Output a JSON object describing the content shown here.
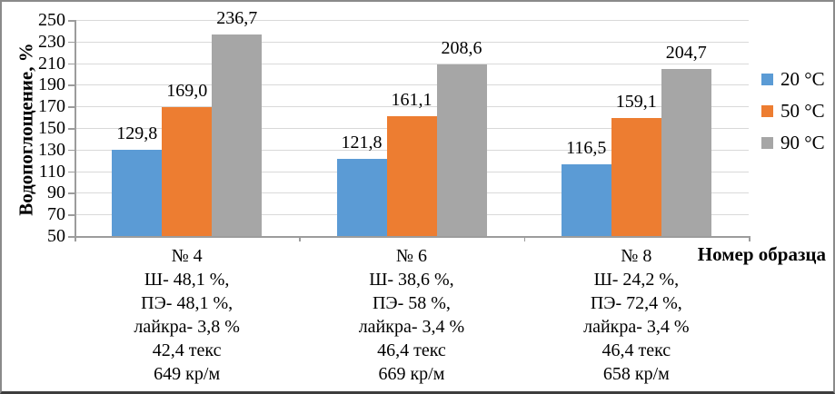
{
  "chart_data": {
    "type": "bar",
    "title": "",
    "ylabel": "Водопоглощение, %",
    "xlabel": "Номер образца",
    "ylim": [
      50,
      250
    ],
    "ytick_step": 20,
    "yticks": [
      50,
      70,
      90,
      110,
      130,
      150,
      170,
      190,
      210,
      230,
      250
    ],
    "grid": true,
    "legend_position": "right",
    "grid_color": "#d9d9d9",
    "axis_color": "#9c9c9c",
    "categories": [
      {
        "lines": [
          "№ 4",
          "Ш- 48,1 %,",
          "ПЭ- 48,1 %,",
          "лайкра- 3,8 %",
          "42,4 текс",
          "649 кр/м"
        ]
      },
      {
        "lines": [
          "№ 6",
          "Ш- 38,6 %,",
          "ПЭ- 58 %,",
          "лайкра- 3,4 %",
          "46,4 текс",
          "669 кр/м"
        ]
      },
      {
        "lines": [
          "№ 8",
          "Ш- 24,2 %,",
          "ПЭ- 72,4 %,",
          "лайкра- 3,4 %",
          "46,4 текс",
          "658 кр/м"
        ]
      }
    ],
    "series": [
      {
        "name": "20 °C",
        "color": "#5b9bd5",
        "values": [
          129.8,
          121.8,
          116.5
        ],
        "labels": [
          "129,8",
          "121,8",
          "116,5"
        ]
      },
      {
        "name": "50 °C",
        "color": "#ed7d31",
        "values": [
          169.0,
          161.1,
          159.1
        ],
        "labels": [
          "169,0",
          "161,1",
          "159,1"
        ]
      },
      {
        "name": "90 °C",
        "color": "#a6a6a6",
        "values": [
          236.7,
          208.6,
          204.7
        ],
        "labels": [
          "236,7",
          "208,6",
          "204,7"
        ]
      }
    ]
  }
}
